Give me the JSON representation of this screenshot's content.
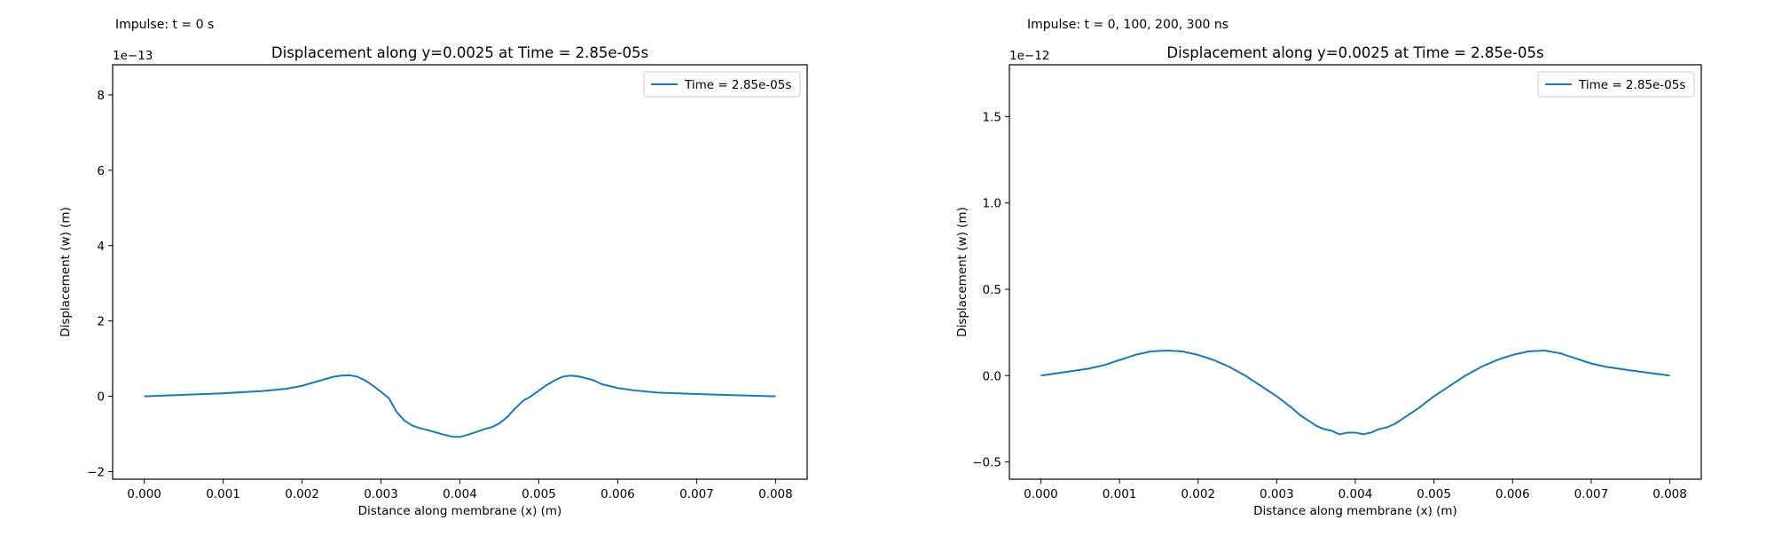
{
  "colors": {
    "line": "#1f77b4",
    "axes": "#000000",
    "legend_border": "#cccccc"
  },
  "panels": [
    {
      "caption": "Impulse: t = 0 s"
    },
    {
      "caption": "Impulse: t = 0, 100, 200, 300 ns"
    }
  ],
  "chart_data": [
    {
      "type": "line",
      "title": "Displacement along y=0.0025 at Time = 2.85e-05s",
      "xlabel": "Distance along membrane (x) (m)",
      "ylabel": "Displacement (w) (m)",
      "y_scale_label": "1e−13",
      "xlim": [
        -0.0004,
        0.0084
      ],
      "ylim": [
        -2.2,
        8.8
      ],
      "xticks": [
        0.0,
        0.001,
        0.002,
        0.003,
        0.004,
        0.005,
        0.006,
        0.007,
        0.008
      ],
      "xtick_labels": [
        "0.000",
        "0.001",
        "0.002",
        "0.003",
        "0.004",
        "0.005",
        "0.006",
        "0.007",
        "0.008"
      ],
      "yticks": [
        -2,
        0,
        2,
        4,
        6,
        8
      ],
      "ytick_labels": [
        "−2",
        "0",
        "2",
        "4",
        "6",
        "8"
      ],
      "grid": false,
      "legend_position": "top-right",
      "series": [
        {
          "name": "Time = 2.85e-05s",
          "x": [
            0.0,
            0.0005,
            0.001,
            0.0015,
            0.0018,
            0.002,
            0.0022,
            0.0024,
            0.0025,
            0.0026,
            0.0027,
            0.0028,
            0.0029,
            0.003,
            0.0031,
            0.0032,
            0.0033,
            0.0034,
            0.0035,
            0.0036,
            0.0037,
            0.0038,
            0.0039,
            0.004,
            0.0041,
            0.0042,
            0.0043,
            0.0044,
            0.0045,
            0.0046,
            0.0047,
            0.0048,
            0.0049,
            0.005,
            0.0051,
            0.0052,
            0.0053,
            0.0054,
            0.0055,
            0.0056,
            0.0057,
            0.0058,
            0.006,
            0.0062,
            0.0065,
            0.007,
            0.0075,
            0.008
          ],
          "y": [
            0.0,
            0.04,
            0.08,
            0.14,
            0.2,
            0.28,
            0.4,
            0.52,
            0.55,
            0.56,
            0.52,
            0.42,
            0.28,
            0.12,
            -0.05,
            -0.42,
            -0.65,
            -0.78,
            -0.85,
            -0.9,
            -0.96,
            -1.02,
            -1.07,
            -1.08,
            -1.02,
            -0.95,
            -0.88,
            -0.82,
            -0.72,
            -0.55,
            -0.32,
            -0.12,
            0.0,
            0.15,
            0.3,
            0.42,
            0.52,
            0.55,
            0.53,
            0.48,
            0.42,
            0.32,
            0.22,
            0.16,
            0.1,
            0.06,
            0.03,
            0.0
          ]
        }
      ]
    },
    {
      "type": "line",
      "title": "Displacement along y=0.0025 at Time = 2.85e-05s",
      "xlabel": "Distance along membrane (x) (m)",
      "ylabel": "Displacement (w) (m)",
      "y_scale_label": "1e−12",
      "xlim": [
        -0.0004,
        0.0084
      ],
      "ylim": [
        -0.6,
        1.8
      ],
      "xticks": [
        0.0,
        0.001,
        0.002,
        0.003,
        0.004,
        0.005,
        0.006,
        0.007,
        0.008
      ],
      "xtick_labels": [
        "0.000",
        "0.001",
        "0.002",
        "0.003",
        "0.004",
        "0.005",
        "0.006",
        "0.007",
        "0.008"
      ],
      "yticks": [
        -0.5,
        0.0,
        0.5,
        1.0,
        1.5
      ],
      "ytick_labels": [
        "−0.5",
        "0.0",
        "0.5",
        "1.0",
        "1.5"
      ],
      "grid": false,
      "legend_position": "top-right",
      "series": [
        {
          "name": "Time = 2.85e-05s",
          "x": [
            0.0,
            0.0003,
            0.0006,
            0.0008,
            0.001,
            0.0012,
            0.0014,
            0.0016,
            0.0018,
            0.002,
            0.0022,
            0.0024,
            0.0026,
            0.0028,
            0.003,
            0.0032,
            0.0033,
            0.0034,
            0.0035,
            0.0036,
            0.0037,
            0.0038,
            0.0039,
            0.004,
            0.0041,
            0.0042,
            0.0043,
            0.0044,
            0.0045,
            0.0046,
            0.0047,
            0.0048,
            0.005,
            0.0052,
            0.0054,
            0.0056,
            0.0058,
            0.006,
            0.0062,
            0.0064,
            0.0066,
            0.0068,
            0.007,
            0.0072,
            0.0075,
            0.008
          ],
          "y": [
            0.0,
            0.02,
            0.04,
            0.06,
            0.09,
            0.12,
            0.14,
            0.145,
            0.14,
            0.12,
            0.09,
            0.05,
            0.0,
            -0.06,
            -0.12,
            -0.19,
            -0.23,
            -0.26,
            -0.29,
            -0.31,
            -0.32,
            -0.34,
            -0.33,
            -0.33,
            -0.34,
            -0.33,
            -0.31,
            -0.3,
            -0.28,
            -0.25,
            -0.22,
            -0.19,
            -0.12,
            -0.06,
            0.0,
            0.05,
            0.09,
            0.12,
            0.14,
            0.145,
            0.13,
            0.1,
            0.07,
            0.05,
            0.03,
            0.0
          ]
        }
      ]
    }
  ]
}
